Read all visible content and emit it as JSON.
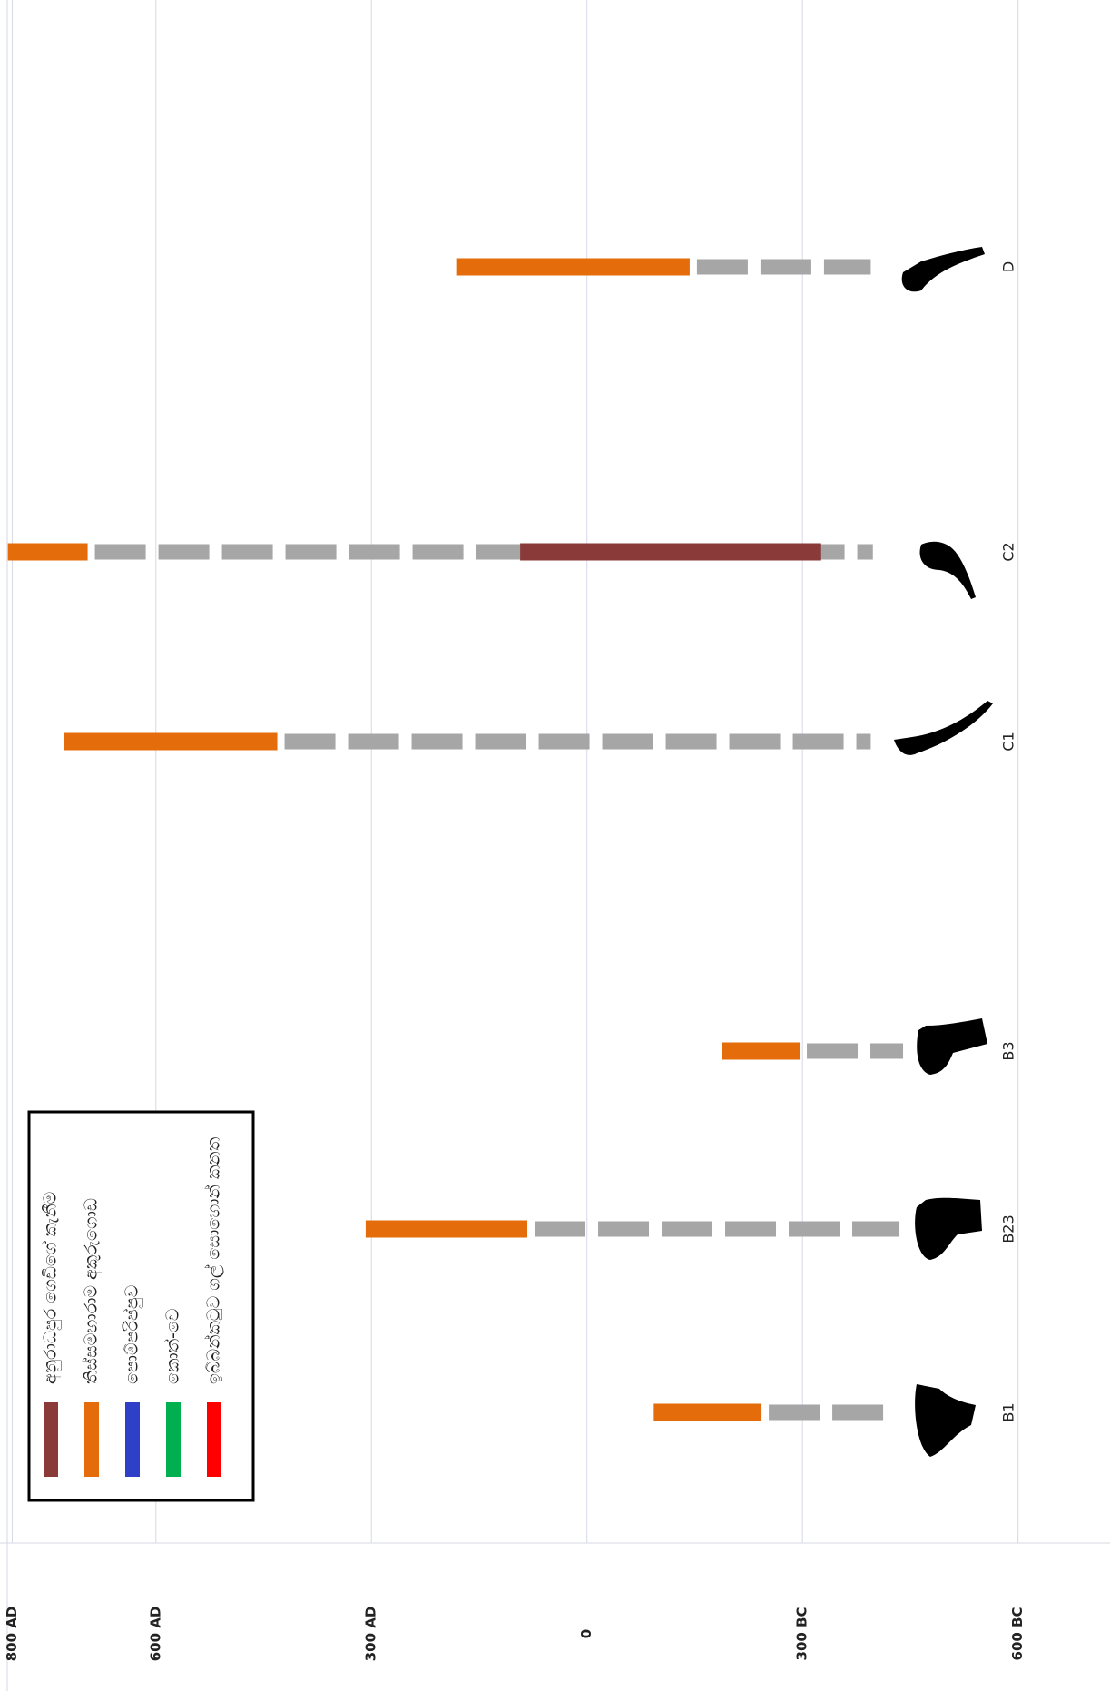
{
  "chart_data": {
    "type": "range-bar",
    "categories": [
      "B1",
      "B23",
      "B3",
      "C1",
      "C2",
      "D"
    ],
    "xlim": [
      817,
      -728
    ],
    "xticks": [
      {
        "value": 800,
        "label": "800 AD"
      },
      {
        "value": 600,
        "label": "600 AD"
      },
      {
        "value": 300,
        "label": "300 AD"
      },
      0,
      {
        "value": -300,
        "label": "300 BC"
      },
      {
        "value": -600,
        "label": "600 BC"
      }
    ],
    "grid": true,
    "series": [
      {
        "color": "#a6a6a6",
        "dashed": true,
        "values": [
          [
            -243,
            -428
          ],
          [
            83,
            -435
          ],
          [
            -296,
            -440
          ],
          [
            431,
            -395
          ],
          [
            695,
            -398
          ],
          [
            -143,
            -395
          ]
        ]
      },
      {
        "name": "අනුරාධපුර ගෙඩිගේ කැනීම",
        "color": "#8b3a3a",
        "values": [
          null,
          null,
          null,
          null,
          [
            93,
            -326
          ],
          null
        ]
      },
      {
        "name": "තිස්සමහාරාම අකුරුගොඩ",
        "color": "#e46c0a",
        "values": [
          [
            -93,
            -243
          ],
          [
            308,
            83
          ],
          [
            -188,
            -296
          ],
          [
            728,
            431
          ],
          [
            806,
            695
          ],
          [
            182,
            -143
          ]
        ]
      },
      {
        "name": "පොම්පරිප්පුව",
        "color": "#2e3fc8",
        "values": [
          null,
          null,
          null,
          null,
          null,
          null
        ]
      },
      {
        "name": "කොත්-වෙ",
        "color": "#00b050",
        "values": [
          null,
          null,
          null,
          null,
          null,
          null
        ]
      },
      {
        "name": "ඉබ්බන්කටුව ගල් සොහොන් කනත",
        "color": "#ff0000",
        "values": [
          null,
          null,
          null,
          null,
          null,
          null
        ]
      }
    ]
  }
}
